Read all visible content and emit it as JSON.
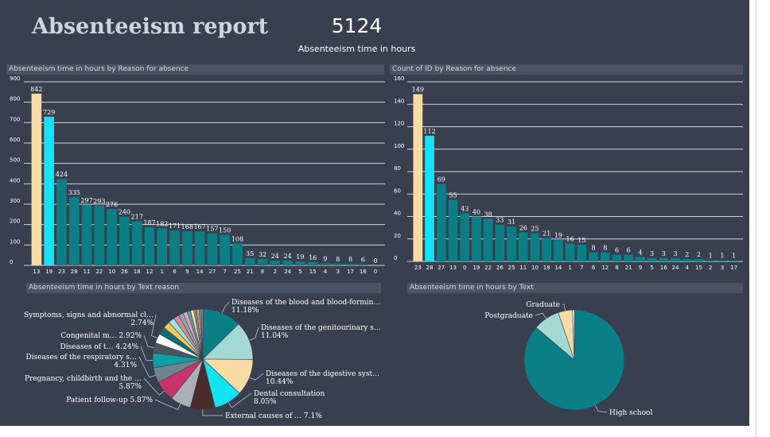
{
  "header": {
    "title": "Absenteeism report",
    "kpi_value": "5124",
    "kpi_label": "Absenteeism time in hours"
  },
  "colors": {
    "background": "#383f4f",
    "teal": "#0a7f86",
    "cyan": "#12e3f5",
    "beige": "#f6dba3",
    "gridline": "#d0d4da"
  },
  "chart_data": [
    {
      "type": "bar",
      "title": "Absenteeism time in hours by Reason for absence",
      "categories": [
        "13",
        "19",
        "23",
        "28",
        "11",
        "22",
        "10",
        "26",
        "18",
        "12",
        "1",
        "6",
        "9",
        "14",
        "27",
        "7",
        "25",
        "21",
        "8",
        "2",
        "24",
        "5",
        "15",
        "4",
        "3",
        "17",
        "16",
        "0"
      ],
      "values": [
        842,
        729,
        424,
        335,
        297,
        293,
        276,
        240,
        217,
        187,
        182,
        171,
        168,
        167,
        157,
        150,
        108,
        35,
        32,
        24,
        24,
        19,
        16,
        9,
        8,
        8,
        6,
        0
      ],
      "bar_colors": [
        "beige",
        "cyan",
        "teal",
        "teal",
        "teal",
        "teal",
        "teal",
        "teal",
        "teal",
        "teal",
        "teal",
        "teal",
        "teal",
        "teal",
        "teal",
        "teal",
        "teal",
        "teal",
        "teal",
        "teal",
        "teal",
        "teal",
        "teal",
        "teal",
        "teal",
        "teal",
        "teal",
        "teal"
      ],
      "yticks": [
        0,
        100,
        200,
        300,
        400,
        500,
        600,
        700,
        800,
        900
      ],
      "ylim": [
        0,
        900
      ]
    },
    {
      "type": "bar",
      "title": "Count of ID by Reason for absence",
      "categories": [
        "23",
        "28",
        "27",
        "13",
        "0",
        "19",
        "22",
        "26",
        "25",
        "11",
        "10",
        "18",
        "14",
        "1",
        "7",
        "6",
        "12",
        "8",
        "21",
        "9",
        "5",
        "16",
        "24",
        "4",
        "15",
        "2",
        "3",
        "17"
      ],
      "values": [
        149,
        112,
        69,
        55,
        43,
        40,
        38,
        33,
        31,
        26,
        25,
        21,
        19,
        16,
        15,
        8,
        8,
        6,
        6,
        4,
        3,
        3,
        3,
        2,
        2,
        1,
        1,
        1
      ],
      "bar_colors": [
        "beige",
        "cyan",
        "teal",
        "teal",
        "teal",
        "teal",
        "teal",
        "teal",
        "teal",
        "teal",
        "teal",
        "teal",
        "teal",
        "teal",
        "teal",
        "teal",
        "teal",
        "teal",
        "teal",
        "teal",
        "teal",
        "teal",
        "teal",
        "teal",
        "teal",
        "teal",
        "teal",
        "teal"
      ],
      "yticks": [
        0,
        20,
        40,
        60,
        80,
        100,
        120,
        140,
        160
      ],
      "ylim": [
        0,
        160
      ]
    },
    {
      "type": "pie",
      "title": "Absenteeism time in hours by Text reason",
      "slices": [
        {
          "value": 11.18,
          "color": "#0a7f86",
          "label_lines": [
            "Diseases of the blood and blood-formin…",
            "11.18%"
          ]
        },
        {
          "value": 11.04,
          "color": "#a3d9d3",
          "label_lines": [
            "Diseases of the genitourinary s…",
            "11.04%"
          ]
        },
        {
          "value": 10.44,
          "color": "#f6dba3",
          "label_lines": [
            "Diseases of the digestive syst…",
            "10.44%"
          ]
        },
        {
          "value": 8.05,
          "color": "#12e3f5",
          "label_lines": [
            "Dental consultation",
            "8.05%"
          ]
        },
        {
          "value": 7.1,
          "color": "#4a2c2a",
          "label_lines": [
            "External causes of … 7.1%"
          ]
        },
        {
          "value": 5.87,
          "color": "#aab0b8",
          "label_lines": [
            "Patient follow-up 5.87%"
          ]
        },
        {
          "value": 5.87,
          "color": "#c8336a",
          "label_lines": [
            "Pregnancy, childbirth and the …",
            "5.87%"
          ]
        },
        {
          "value": 4.31,
          "color": "#6e8590",
          "label_lines": [
            "Diseases of the respiratory s…",
            "4.31%"
          ]
        },
        {
          "value": 4.24,
          "color": "#0e9ea6",
          "label_lines": [
            "Diseases of t… 4.24%"
          ]
        },
        {
          "value": 2.92,
          "color": "#4d5560",
          "label_lines": [
            "Congenital m… 2.92%"
          ]
        },
        {
          "value": 2.74,
          "color": "#ffffff",
          "label_lines": [
            "Symptoms, signs and abnormal cl…",
            "2.74%"
          ]
        },
        {
          "value": 2.2,
          "color": "#0d6e74",
          "label_lines": []
        },
        {
          "value": 2.0,
          "color": "#f3c94e",
          "label_lines": []
        },
        {
          "value": 1.8,
          "color": "#9ee0e6",
          "label_lines": []
        },
        {
          "value": 1.6,
          "color": "#d98a8a",
          "label_lines": []
        },
        {
          "value": 1.4,
          "color": "#8fa6b0",
          "label_lines": []
        },
        {
          "value": 1.2,
          "color": "#e8a3b8",
          "label_lines": []
        },
        {
          "value": 1.0,
          "color": "#5c9aa8",
          "label_lines": []
        },
        {
          "value": 0.9,
          "color": "#f0e4c0",
          "label_lines": []
        },
        {
          "value": 0.8,
          "color": "#b5793a",
          "label_lines": []
        },
        {
          "value": 0.7,
          "color": "#7ac7c2",
          "label_lines": []
        },
        {
          "value": 0.6,
          "color": "#e06d3c",
          "label_lines": []
        },
        {
          "value": 0.5,
          "color": "#a07cc0",
          "label_lines": []
        }
      ]
    },
    {
      "type": "pie",
      "title": "Absenteeism time in hours by Text",
      "slices": [
        {
          "value": 86.2,
          "color": "#0a7f86",
          "label_lines": [
            "High school"
          ]
        },
        {
          "value": 8.6,
          "color": "#a3d9d3",
          "label_lines": [
            "Postgraduate"
          ]
        },
        {
          "value": 4.6,
          "color": "#f6dba3",
          "label_lines": [
            "Graduate"
          ]
        },
        {
          "value": 0.6,
          "color": "#ffffff",
          "label_lines": []
        }
      ]
    }
  ]
}
